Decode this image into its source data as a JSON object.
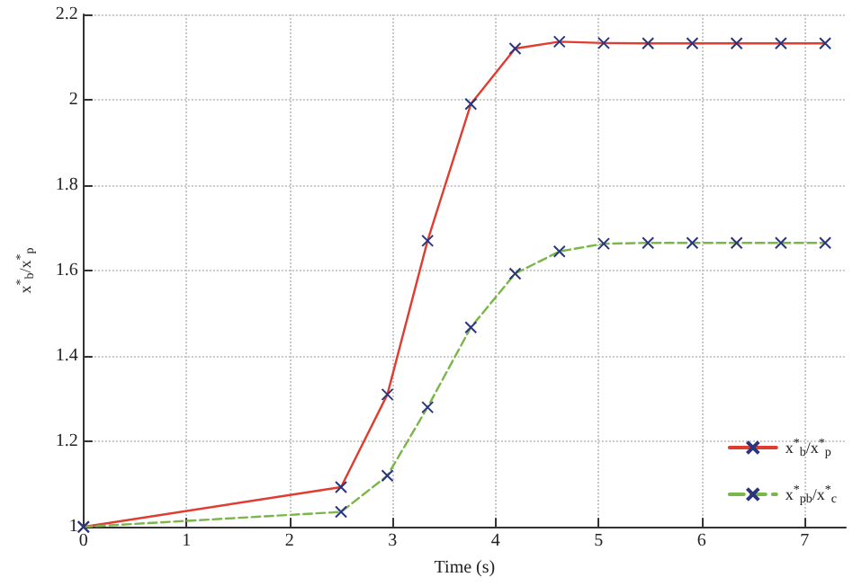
{
  "chart_data": {
    "type": "line",
    "xlabel": "Time (s)",
    "ylabel": "x$^{*}$$_{b}$/x$^{*}$$_{p}$",
    "x": [
      0,
      2.5,
      2.95,
      3.34,
      3.76,
      4.19,
      4.62,
      5.05,
      5.48,
      5.91,
      6.34,
      6.77,
      7.2
    ],
    "series": [
      {
        "name": "x$^{*}$$_{b}$/x$^{*}$$_{p}$",
        "color": "#e03c31",
        "line_style": "solid",
        "values": [
          1.0,
          1.093,
          1.31,
          1.67,
          1.99,
          2.12,
          2.136,
          2.133,
          2.132,
          2.132,
          2.132,
          2.132,
          2.132
        ]
      },
      {
        "name": "x$^{*}$$_{pb}$/x$^{*}$$_{c}$",
        "color": "#7ab648",
        "line_style": "dashed",
        "values": [
          1.0,
          1.035,
          1.12,
          1.28,
          1.467,
          1.593,
          1.645,
          1.663,
          1.665,
          1.665,
          1.665,
          1.665,
          1.665
        ]
      }
    ],
    "xlim": [
      0,
      7.4
    ],
    "xticks": [
      0,
      1,
      2,
      3,
      4,
      5,
      6,
      7
    ],
    "ylim": [
      1,
      2.2
    ],
    "yticks": [
      1,
      1.2,
      1.4,
      1.6,
      1.8,
      2,
      2.2
    ],
    "grid": true,
    "legend": "bottom right",
    "marker": "cross"
  }
}
